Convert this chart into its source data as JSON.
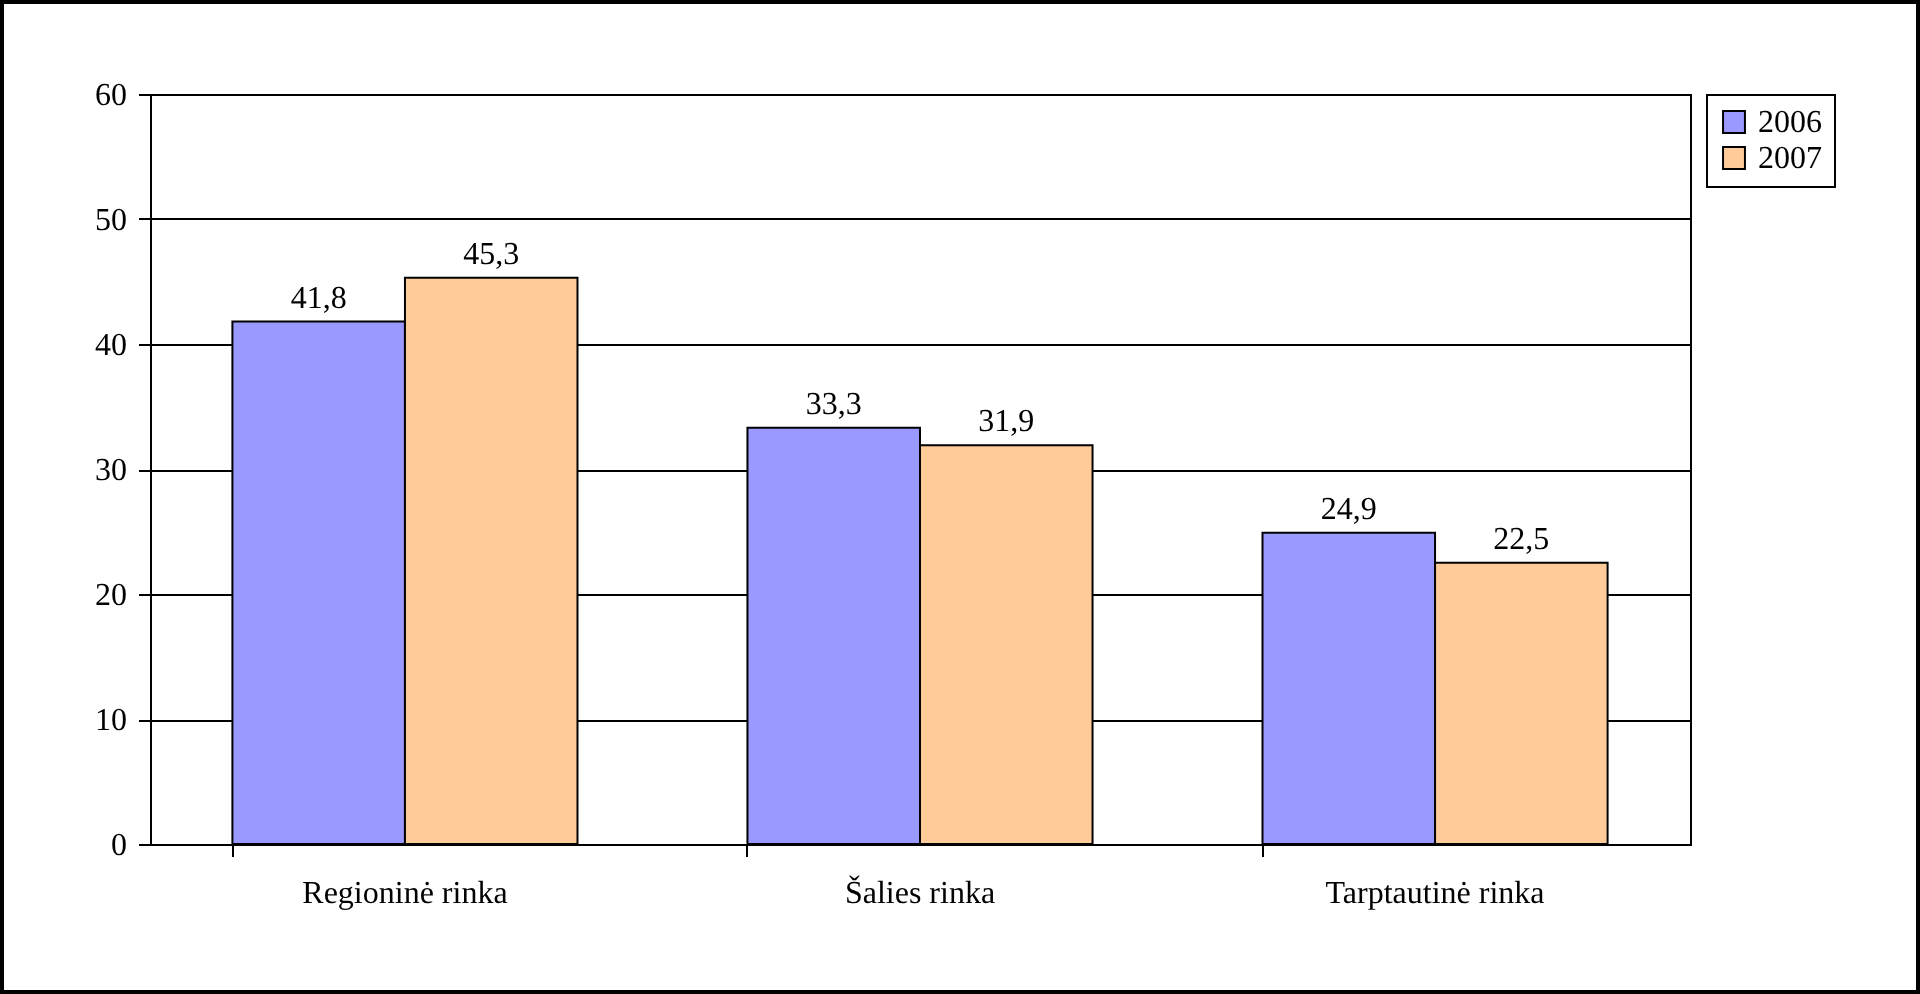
{
  "chart_data": {
    "type": "bar",
    "categories": [
      "Regioninė rinka",
      "Šalies rinka",
      "Tarptautinė rinka"
    ],
    "series": [
      {
        "name": "2006",
        "color": "#9999ff",
        "values": [
          41.8,
          33.3,
          24.9
        ],
        "value_labels": [
          "41,8",
          "33,3",
          "24,9"
        ]
      },
      {
        "name": "2007",
        "color": "#ffcc99",
        "values": [
          45.3,
          31.9,
          22.5
        ],
        "value_labels": [
          "45,3",
          "31,9",
          "22,5"
        ]
      }
    ],
    "ylim": [
      0,
      60
    ],
    "yticks": [
      0,
      10,
      20,
      30,
      40,
      50,
      60
    ],
    "grid": "y",
    "legend": "right"
  }
}
